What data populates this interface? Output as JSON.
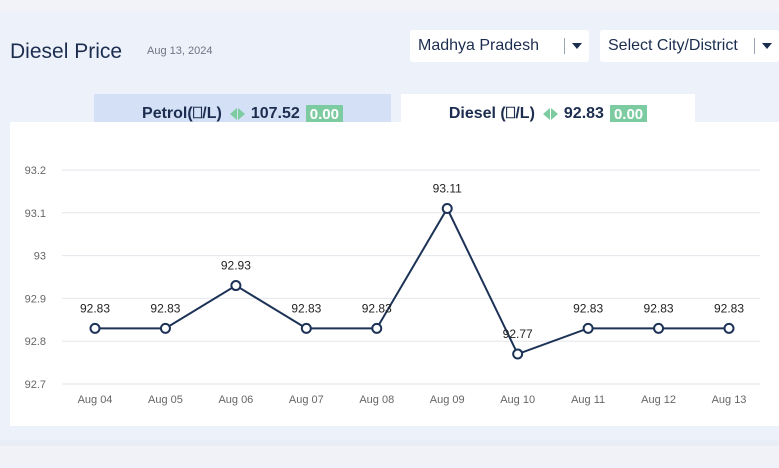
{
  "header": {
    "title": "Diesel Price",
    "date": "Aug 13, 2024"
  },
  "filters": {
    "state": "Madhya Pradesh",
    "city": "Select City/District"
  },
  "tabs": [
    {
      "label": "Petrol(⎕/L)",
      "price": "107.52",
      "change": "0.00",
      "active": false
    },
    {
      "label": "Diesel (⎕/L)",
      "price": "92.83",
      "change": "0.00",
      "active": true
    }
  ],
  "colors": {
    "accent_green": "#7dcba1",
    "line": "#1c3256",
    "text_dark": "#1c2d4f"
  },
  "chart_data": {
    "type": "line",
    "categories": [
      "Aug 04",
      "Aug 05",
      "Aug 06",
      "Aug 07",
      "Aug 08",
      "Aug 09",
      "Aug 10",
      "Aug 11",
      "Aug 12",
      "Aug 13"
    ],
    "values": [
      92.83,
      92.83,
      92.93,
      92.83,
      92.83,
      93.11,
      92.77,
      92.83,
      92.83,
      92.83
    ],
    "y_ticks": [
      "92.7",
      "92.8",
      "92.9",
      "93",
      "93.1",
      "93.2"
    ],
    "ylim": [
      92.7,
      93.2
    ],
    "grid": true,
    "title": "",
    "xlabel": "",
    "ylabel": ""
  }
}
